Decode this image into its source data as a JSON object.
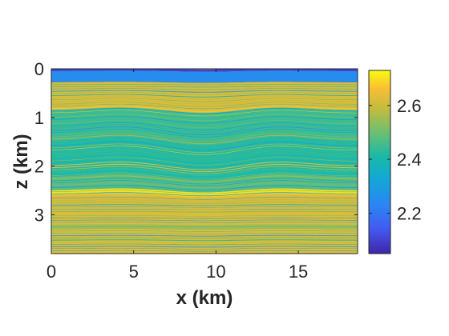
{
  "chart_data": {
    "type": "heatmap",
    "title": "",
    "xlabel": "x (km)",
    "ylabel": "z (km)",
    "xlim": [
      0,
      18.6
    ],
    "ylim": [
      3.8,
      0
    ],
    "x_ticks": [
      0,
      5,
      10,
      15
    ],
    "y_ticks": [
      0,
      1,
      2,
      3
    ],
    "x_tick_labels": [
      "0",
      "5",
      "10",
      "15"
    ],
    "y_tick_labels": [
      "0",
      "1",
      "2",
      "3"
    ],
    "colorbar": {
      "range": [
        2.05,
        2.73
      ],
      "ticks": [
        2.2,
        2.4,
        2.6
      ],
      "tick_labels": [
        "2.2",
        "2.4",
        "2.6"
      ],
      "colormap": "parula"
    },
    "layers": [
      {
        "top_km": 0.0,
        "value": 2.1
      },
      {
        "top_km": 0.05,
        "value": 2.25
      },
      {
        "top_km": 0.28,
        "value": 2.62
      },
      {
        "top_km": 0.85,
        "value": 2.45
      },
      {
        "top_km": 1.5,
        "value": 2.42
      },
      {
        "top_km": 2.2,
        "value": 2.48
      },
      {
        "top_km": 2.5,
        "value": 2.7
      },
      {
        "top_km": 2.6,
        "value": 2.62
      },
      {
        "top_km": 3.2,
        "value": 2.55
      },
      {
        "top_km": 3.3,
        "value": 2.62
      }
    ]
  }
}
